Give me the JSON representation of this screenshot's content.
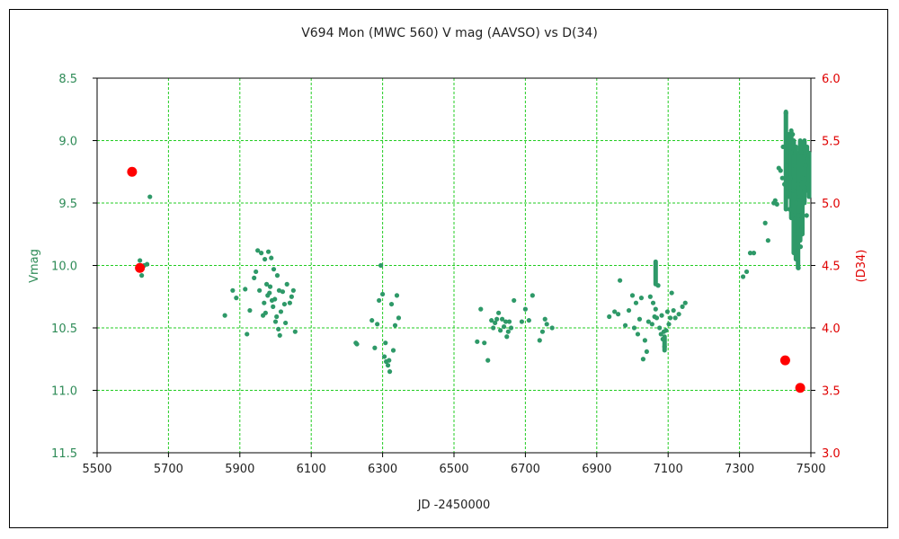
{
  "chart_data": {
    "type": "scatter",
    "title": "V694 Mon (MWC 560)   V mag (AAVSO)  vs  D(34)",
    "xlabel": "JD -2450000",
    "ylabel": "Vmag",
    "y2label": "(D34)",
    "xlim": [
      5500,
      7500
    ],
    "ylim": [
      8.5,
      11.5
    ],
    "y_inverted": true,
    "y2lim": [
      3.0,
      6.0
    ],
    "grid": true,
    "grid_color": "#22cc22",
    "x_ticks": [
      "5500",
      "5700",
      "5900",
      "6100",
      "6300",
      "6500",
      "6700",
      "6900",
      "7100",
      "7300",
      "7500"
    ],
    "y_ticks": [
      "8.5",
      "9.0",
      "9.5",
      "10.0",
      "10.5",
      "11.0",
      "11.5"
    ],
    "y2_ticks": [
      "6.0",
      "5.5",
      "5.0",
      "4.5",
      "4.0",
      "3.5",
      "3.0"
    ],
    "colors": {
      "vmag": "#2e9968",
      "d34": "#ff0000"
    },
    "series": [
      {
        "axis": "left",
        "points": [
          [
            5620,
            9.96
          ],
          [
            5625,
            10.08
          ],
          [
            5632,
            10.0
          ],
          [
            5640,
            9.99
          ],
          [
            5648,
            9.45
          ],
          [
            5858,
            10.4
          ],
          [
            5880,
            10.2
          ],
          [
            5890,
            10.26
          ],
          [
            5915,
            10.19
          ],
          [
            5920,
            10.55
          ],
          [
            5928,
            10.36
          ],
          [
            5940,
            10.1
          ],
          [
            5945,
            10.05
          ],
          [
            5950,
            9.88
          ],
          [
            5955,
            10.2
          ],
          [
            5960,
            9.9
          ],
          [
            5965,
            10.4
          ],
          [
            5968,
            10.3
          ],
          [
            5970,
            9.95
          ],
          [
            5972,
            10.38
          ],
          [
            5975,
            10.15
          ],
          [
            5978,
            10.24
          ],
          [
            5980,
            9.89
          ],
          [
            5983,
            10.22
          ],
          [
            5985,
            10.17
          ],
          [
            5988,
            9.94
          ],
          [
            5990,
            10.28
          ],
          [
            5993,
            10.33
          ],
          [
            5995,
            10.03
          ],
          [
            5998,
            10.27
          ],
          [
            6000,
            10.45
          ],
          [
            6003,
            10.41
          ],
          [
            6005,
            10.08
          ],
          [
            6008,
            10.51
          ],
          [
            6010,
            10.2
          ],
          [
            6012,
            10.56
          ],
          [
            6015,
            10.37
          ],
          [
            6020,
            10.21
          ],
          [
            6025,
            10.31
          ],
          [
            6028,
            10.46
          ],
          [
            6032,
            10.15
          ],
          [
            6040,
            10.3
          ],
          [
            6045,
            10.25
          ],
          [
            6050,
            10.2
          ],
          [
            6055,
            10.53
          ],
          [
            6225,
            10.62
          ],
          [
            6228,
            10.63
          ],
          [
            6270,
            10.44
          ],
          [
            6278,
            10.66
          ],
          [
            6285,
            10.47
          ],
          [
            6290,
            10.28
          ],
          [
            6295,
            10.0
          ],
          [
            6300,
            10.23
          ],
          [
            6305,
            10.73
          ],
          [
            6308,
            10.62
          ],
          [
            6310,
            10.77
          ],
          [
            6315,
            10.8
          ],
          [
            6318,
            10.76
          ],
          [
            6320,
            10.85
          ],
          [
            6325,
            10.31
          ],
          [
            6330,
            10.68
          ],
          [
            6335,
            10.48
          ],
          [
            6340,
            10.24
          ],
          [
            6345,
            10.42
          ],
          [
            6565,
            10.61
          ],
          [
            6575,
            10.35
          ],
          [
            6585,
            10.62
          ],
          [
            6595,
            10.76
          ],
          [
            6605,
            10.44
          ],
          [
            6610,
            10.5
          ],
          [
            6615,
            10.46
          ],
          [
            6620,
            10.43
          ],
          [
            6625,
            10.38
          ],
          [
            6630,
            10.52
          ],
          [
            6635,
            10.43
          ],
          [
            6640,
            10.49
          ],
          [
            6645,
            10.45
          ],
          [
            6648,
            10.57
          ],
          [
            6652,
            10.53
          ],
          [
            6655,
            10.45
          ],
          [
            6660,
            10.5
          ],
          [
            6668,
            10.28
          ],
          [
            6690,
            10.45
          ],
          [
            6700,
            10.35
          ],
          [
            6710,
            10.44
          ],
          [
            6720,
            10.24
          ],
          [
            6740,
            10.6
          ],
          [
            6748,
            10.53
          ],
          [
            6755,
            10.43
          ],
          [
            6760,
            10.47
          ],
          [
            6775,
            10.5
          ],
          [
            6935,
            10.41
          ],
          [
            6950,
            10.37
          ],
          [
            6960,
            10.39
          ],
          [
            6965,
            10.12
          ],
          [
            6980,
            10.48
          ],
          [
            6990,
            10.36
          ],
          [
            7000,
            10.24
          ],
          [
            7005,
            10.5
          ],
          [
            7010,
            10.3
          ],
          [
            7015,
            10.55
          ],
          [
            7020,
            10.43
          ],
          [
            7025,
            10.26
          ],
          [
            7030,
            10.75
          ],
          [
            7035,
            10.6
          ],
          [
            7040,
            10.69
          ],
          [
            7045,
            10.45
          ],
          [
            7050,
            10.25
          ],
          [
            7055,
            10.47
          ],
          [
            7058,
            10.3
          ],
          [
            7062,
            10.41
          ],
          [
            7065,
            10.35
          ],
          [
            7068,
            10.42
          ],
          [
            7072,
            10.16
          ],
          [
            7076,
            10.5
          ],
          [
            7080,
            10.55
          ],
          [
            7082,
            10.4
          ],
          [
            7085,
            10.59
          ],
          [
            7088,
            10.53
          ],
          [
            7090,
            10.65
          ],
          [
            7094,
            10.52
          ],
          [
            7098,
            10.37
          ],
          [
            7102,
            10.47
          ],
          [
            7106,
            10.42
          ],
          [
            7110,
            10.22
          ],
          [
            7115,
            10.36
          ],
          [
            7120,
            10.42
          ],
          [
            7130,
            10.39
          ],
          [
            7140,
            10.33
          ],
          [
            7148,
            10.3
          ],
          [
            7310,
            10.09
          ],
          [
            7320,
            10.05
          ],
          [
            7330,
            9.9
          ],
          [
            7340,
            9.9
          ],
          [
            7372,
            9.66
          ],
          [
            7380,
            9.8
          ],
          [
            7396,
            9.5
          ],
          [
            7400,
            9.48
          ],
          [
            7405,
            9.51
          ],
          [
            7410,
            9.22
          ],
          [
            7415,
            9.24
          ],
          [
            7420,
            9.3
          ],
          [
            7422,
            9.05
          ],
          [
            7426,
            9.35
          ],
          [
            7430,
            8.78
          ],
          [
            7432,
            9.2
          ],
          [
            7435,
            9.42
          ],
          [
            7438,
            9.0
          ],
          [
            7440,
            9.55
          ],
          [
            7442,
            9.3
          ],
          [
            7445,
            9.1
          ],
          [
            7447,
            9.6
          ],
          [
            7449,
            8.95
          ],
          [
            7451,
            9.4
          ],
          [
            7453,
            9.75
          ],
          [
            7455,
            9.2
          ],
          [
            7457,
            9.85
          ],
          [
            7459,
            9.5
          ],
          [
            7461,
            9.9
          ],
          [
            7463,
            9.35
          ],
          [
            7465,
            10.02
          ],
          [
            7467,
            9.6
          ],
          [
            7469,
            9.45
          ],
          [
            7471,
            9.85
          ],
          [
            7473,
            9.1
          ],
          [
            7475,
            9.7
          ],
          [
            7477,
            9.3
          ],
          [
            7479,
            9.5
          ],
          [
            7481,
            9.05
          ],
          [
            7483,
            9.4
          ],
          [
            7485,
            9.2
          ],
          [
            7488,
            9.6
          ],
          [
            7490,
            9.15
          ],
          [
            7492,
            9.35
          ]
        ]
      },
      {
        "axis": "right",
        "points": [
          [
            5598,
            5.25
          ],
          [
            5620,
            4.48
          ],
          [
            7428,
            3.74
          ],
          [
            7470,
            3.52
          ]
        ]
      }
    ],
    "dense_segments": [
      {
        "x": 7065,
        "ymin": 9.97,
        "ymax": 10.15
      },
      {
        "x": 7090,
        "ymin": 10.57,
        "ymax": 10.68
      },
      {
        "x": 7430,
        "ymin": 8.77,
        "ymax": 9.55
      },
      {
        "x": 7438,
        "ymin": 8.95,
        "ymax": 9.45
      },
      {
        "x": 7445,
        "ymin": 8.92,
        "ymax": 9.62
      },
      {
        "x": 7452,
        "ymin": 9.0,
        "ymax": 9.9
      },
      {
        "x": 7458,
        "ymin": 9.05,
        "ymax": 9.95
      },
      {
        "x": 7464,
        "ymin": 9.1,
        "ymax": 10.02
      },
      {
        "x": 7470,
        "ymin": 9.0,
        "ymax": 9.8
      },
      {
        "x": 7476,
        "ymin": 9.15,
        "ymax": 9.75
      },
      {
        "x": 7482,
        "ymin": 9.0,
        "ymax": 9.5
      },
      {
        "x": 7489,
        "ymin": 9.05,
        "ymax": 9.4
      },
      {
        "x": 7495,
        "ymin": 9.1,
        "ymax": 9.45
      }
    ]
  }
}
